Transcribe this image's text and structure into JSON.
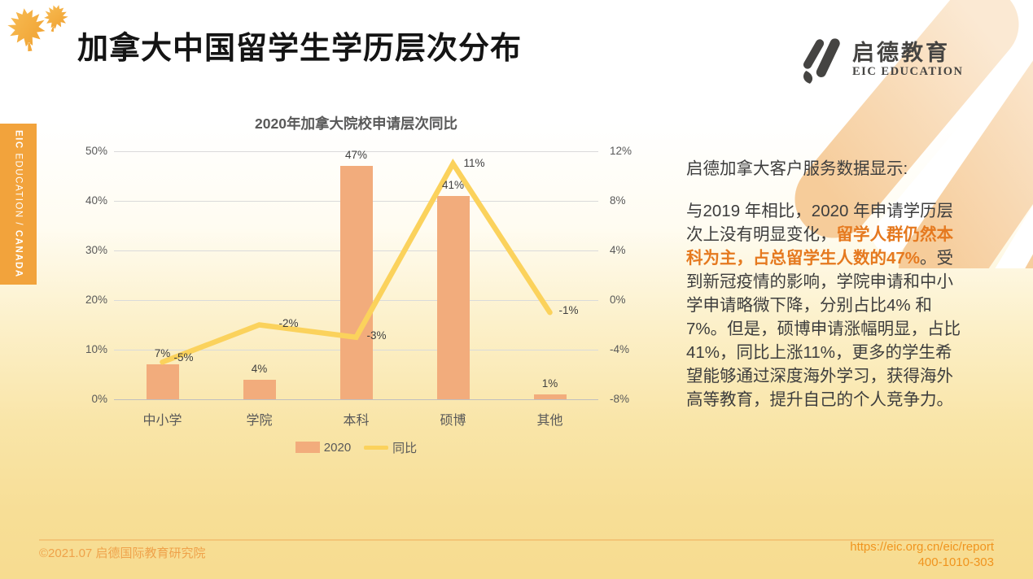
{
  "slide": {
    "title": "加拿大中国留学生学历层次分布",
    "sidebar": {
      "part1": "EIC",
      "part2": " EDUCATION / ",
      "part3": "CANADA"
    },
    "logo": {
      "name_cn": "启德教育",
      "name_en": "EIC EDUCATION"
    }
  },
  "chart_data": {
    "type": "bar",
    "title": "2020年加拿大院校申请层次同比",
    "categories": [
      "中小学",
      "学院",
      "本科",
      "硕博",
      "其他"
    ],
    "series": [
      {
        "name": "2020",
        "type": "bar",
        "axis": "left",
        "values": [
          7,
          4,
          47,
          41,
          1
        ],
        "labels": [
          "7%",
          "4%",
          "47%",
          "41%",
          "1%"
        ],
        "color": "#F2AC7C"
      },
      {
        "name": "同比",
        "type": "line",
        "axis": "right",
        "values": [
          -5,
          -2,
          -3,
          11,
          -1
        ],
        "labels": [
          "-5%",
          "-2%",
          "-3%",
          "11%",
          "-1%"
        ],
        "color": "#FBD25C"
      }
    ],
    "left_axis": {
      "min": 0,
      "max": 50,
      "ticks": [
        "50%",
        "40%",
        "30%",
        "20%",
        "10%",
        "0%"
      ]
    },
    "right_axis": {
      "min": -8,
      "max": 12,
      "ticks": [
        "12%",
        "8%",
        "4%",
        "0%",
        "-4%",
        "-8%"
      ]
    },
    "legend_position": "bottom",
    "grid": true
  },
  "panel": {
    "heading": "启德加拿大客户服务数据显示:",
    "para_before": "与2019 年相比，2020 年申请学历层次上没有明显变化，",
    "para_highlight": "留学人群仍然本科为主，占总留学生人数的47%",
    "para_after": "。受到新冠疫情的影响，学院申请和中小学申请略微下降，分别占比4% 和7%。但是，硕博申请涨幅明显，占比41%，同比上涨11%，更多的学生希望能够通过深度海外学习，获得海外高等教育，提升自己的个人竞争力。"
  },
  "footer": {
    "left": "©2021.07 启德国际教育研究院",
    "url": "https://eic.org.cn/eic/report",
    "phone": "400-1010-303"
  },
  "colors": {
    "bar": "#F2AC7C",
    "line": "#FBD25C",
    "accent_text": "#E5791F",
    "sidebar_bg": "#F2A33C",
    "footer_text": "#F0941E"
  }
}
